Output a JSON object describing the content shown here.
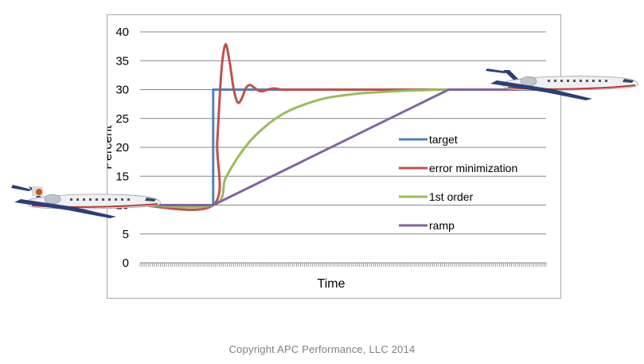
{
  "chart_data": {
    "type": "line",
    "ylabel": "Percent",
    "xlabel": "Time",
    "ylim": [
      0,
      40
    ],
    "yticks": [
      "0",
      "5",
      "10",
      "15",
      "20",
      "25",
      "30",
      "35",
      "40"
    ],
    "xlim": [
      0,
      100
    ],
    "x_tick_labels": "none (many minor tick marks only)",
    "grid": "horizontal",
    "legend_position": "right-inner",
    "series": [
      {
        "name": "target",
        "color": "#4f81bd",
        "x": [
          0,
          18,
          18,
          100
        ],
        "y": [
          10,
          10,
          30,
          30
        ]
      },
      {
        "name": "error minimization",
        "color": "#c0504d",
        "x": [
          0,
          18,
          19,
          20,
          21,
          22,
          23,
          24,
          25,
          26,
          27,
          28,
          29,
          30,
          31,
          32,
          33,
          34,
          35,
          36,
          38,
          40,
          100
        ],
        "y": [
          10,
          10,
          21,
          33,
          37.8,
          35,
          30.3,
          27.8,
          28.4,
          30.2,
          30.8,
          30.4,
          29.9,
          29.7,
          29.9,
          30.1,
          30.2,
          30.1,
          30,
          30,
          30,
          30,
          30
        ]
      },
      {
        "name": "1st order",
        "color": "#9bbb59",
        "x": [
          0,
          18,
          21,
          24,
          27,
          30,
          33,
          36,
          40,
          45,
          50,
          55,
          60,
          65,
          70,
          76,
          100
        ],
        "y": [
          10,
          10,
          14.6,
          18.2,
          21.0,
          23.1,
          24.8,
          26.1,
          27.3,
          28.4,
          29.0,
          29.4,
          29.6,
          29.8,
          29.9,
          30,
          30
        ]
      },
      {
        "name": "ramp",
        "color": "#8064a2",
        "x": [
          0,
          18,
          76,
          100
        ],
        "y": [
          10,
          10,
          30,
          30
        ]
      }
    ]
  },
  "footer": {
    "copyright": "Copyright APC Performance,  LLC 2014"
  },
  "decorations": {
    "left_icon": "airplane-icon",
    "right_icon": "airplane-icon"
  }
}
